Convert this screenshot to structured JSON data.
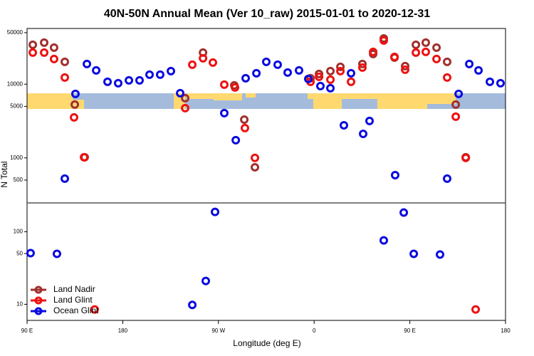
{
  "chart_data": {
    "type": "scatter",
    "title": "40N-50N Annual Mean (Ver 10_raw)   2015-01-01 to 2020-12-31",
    "x_label": "Longitude (deg E)",
    "y_label": "N Total",
    "log_y": true,
    "legend": "lower left",
    "xlim": [
      90,
      540
    ],
    "xticks": [
      {
        "value": 90,
        "label": "90 E"
      },
      180,
      {
        "value": 270,
        "label": "90 W"
      },
      {
        "value": 360,
        "label": "0"
      },
      {
        "value": 450,
        "label": "90 E"
      },
      {
        "value": 540,
        "label": "180"
      }
    ],
    "panels": [
      {
        "ylim": [
          245,
          57000
        ],
        "yticks": [
          500,
          1000,
          5000,
          10000,
          50000
        ]
      },
      {
        "ylim": [
          6,
          250
        ],
        "yticks": [
          10,
          50,
          100
        ]
      }
    ],
    "series": [
      {
        "name": "Land Nadir",
        "color": "#a0302e",
        "x": [
          95.4,
          106.1,
          115.4,
          125.5,
          134.9,
          144.2,
          238.7,
          255.5,
          284.9,
          294.3,
          304.3,
          356.6,
          364.6,
          375.3,
          384.7,
          405.4,
          415.5,
          425.5,
          435.6,
          445.6,
          455.7,
          465,
          475.1,
          485.1,
          493.2,
          502.6
        ],
        "values": [
          34250,
          36600,
          31350,
          20090,
          5290,
          1020,
          6460,
          26830,
          9640,
          3310,
          746,
          12040,
          13760,
          15040,
          17190,
          18790,
          25660,
          41800,
          22950,
          17580,
          34250,
          36600,
          31350,
          20090,
          5290,
          1020
        ]
      },
      {
        "name": "Land Glint",
        "color": "#ee1111",
        "x": [
          95.4,
          106.1,
          115.4,
          125.5,
          134.2,
          143.6,
          153.6,
          238.7,
          245.4,
          255.5,
          264.8,
          275.5,
          285.6,
          294.9,
          304.3,
          356.6,
          364.6,
          375.3,
          384.7,
          394.7,
          405.4,
          415.5,
          425.5,
          435.6,
          445.6,
          455.7,
          465,
          475.1,
          485.1,
          493.2,
          502.6,
          511.9
        ],
        "values": [
          26830,
          26830,
          21950,
          12310,
          3540,
          1020,
          8.5,
          4730,
          18380,
          22450,
          19650,
          9860,
          9020,
          2540,
          1000,
          10770,
          12590,
          11510,
          15040,
          10770,
          16810,
          27430,
          39150,
          23470,
          15730,
          26830,
          27430,
          21950,
          12310,
          3620,
          1000,
          8.5
        ]
      },
      {
        "name": "Ocean Glint",
        "color": "#0a0ae0",
        "x": [
          93.3,
          118.1,
          125.5,
          135.5,
          146.3,
          155,
          165.7,
          175.7,
          185.8,
          195.8,
          205.2,
          215.2,
          225.3,
          234,
          245.4,
          258.1,
          266.8,
          275.5,
          286.3,
          295.6,
          305.7,
          315,
          325.7,
          335.1,
          345.8,
          354.5,
          365.9,
          375.3,
          388,
          394.7,
          406.1,
          412.1,
          425.5,
          436.2,
          444.3,
          453.7,
          478.4,
          485.1,
          495.9,
          505.9,
          514.6,
          525.3,
          535.3
        ],
        "values": [
          50.8,
          49.7,
          523,
          7380,
          18790,
          15380,
          10770,
          10300,
          11260,
          11260,
          13460,
          13460,
          15040,
          7550,
          9.8,
          21,
          188,
          4050,
          1740,
          12040,
          14070,
          20090,
          18380,
          14390,
          15380,
          11780,
          9430,
          8820,
          2770,
          14070,
          2120,
          3170,
          76,
          584,
          184,
          49.7,
          48.6,
          523,
          7380,
          18790,
          15380,
          10770,
          10300
        ]
      }
    ]
  }
}
